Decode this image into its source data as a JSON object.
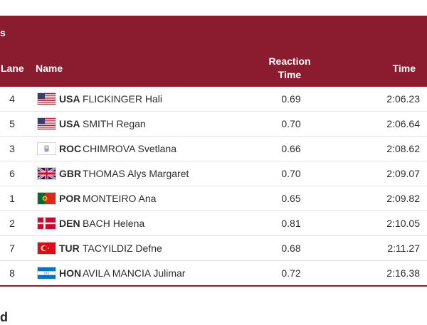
{
  "table": {
    "header": {
      "corner": "s",
      "lane": "Lane",
      "name": "Name",
      "reaction_line1": "Reaction",
      "reaction_line2": "Time",
      "time": "Time"
    },
    "rows": [
      {
        "lane": "4",
        "flag_icon": "usa-flag-icon",
        "country": "USA",
        "athlete": "FLICKINGER Hali",
        "reaction": "0.69",
        "time": "2:06.23"
      },
      {
        "lane": "5",
        "flag_icon": "usa-flag-icon",
        "country": "USA",
        "athlete": "SMITH Regan",
        "reaction": "0.70",
        "time": "2:06.64"
      },
      {
        "lane": "3",
        "flag_icon": "roc-flag-icon",
        "country": "ROC",
        "athlete": "CHIMROVA Svetlana",
        "reaction": "0.66",
        "time": "2:08.62"
      },
      {
        "lane": "6",
        "flag_icon": "gbr-flag-icon",
        "country": "GBR",
        "athlete": "THOMAS Alys Margaret",
        "reaction": "0.70",
        "time": "2:09.07"
      },
      {
        "lane": "1",
        "flag_icon": "por-flag-icon",
        "country": "POR",
        "athlete": "MONTEIRO Ana",
        "reaction": "0.65",
        "time": "2:09.82"
      },
      {
        "lane": "2",
        "flag_icon": "den-flag-icon",
        "country": "DEN",
        "athlete": "BACH Helena",
        "reaction": "0.81",
        "time": "2:10.05"
      },
      {
        "lane": "7",
        "flag_icon": "tur-flag-icon",
        "country": "TUR",
        "athlete": "TACYILDIZ Defne",
        "reaction": "0.68",
        "time": "2:11.27"
      },
      {
        "lane": "8",
        "flag_icon": "hon-flag-icon",
        "country": "HON",
        "athlete": "AVILA MANCIA Julimar",
        "reaction": "0.72",
        "time": "2:16.38"
      }
    ]
  },
  "footer_text": "d",
  "colors": {
    "header_bg": "#8b1c2f",
    "header_text": "#ffffff",
    "row_border": "#e3e3e3"
  }
}
